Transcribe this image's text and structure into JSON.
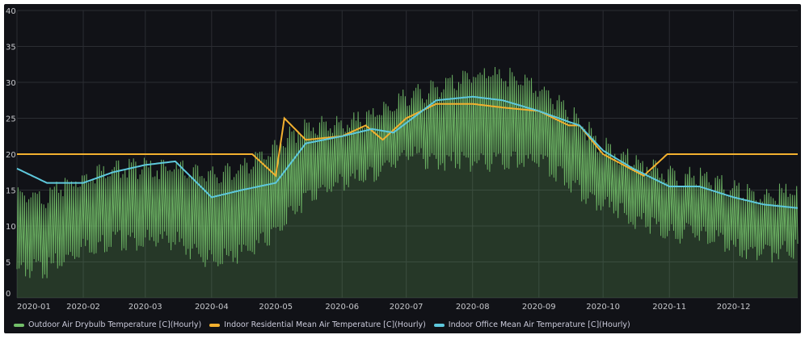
{
  "chart_data": {
    "type": "line",
    "title": "",
    "ylim": [
      0,
      40
    ],
    "y_ticks": [
      "0",
      "5",
      "10",
      "15",
      "20",
      "25",
      "30",
      "35",
      "40"
    ],
    "x_ticks": [
      "2020-01",
      "2020-02",
      "2020-03",
      "2020-04",
      "2020-05",
      "2020-06",
      "2020-07",
      "2020-08",
      "2020-09",
      "2020-10",
      "2020-11",
      "2020-12"
    ],
    "x_range": [
      "2020-01-01",
      "2020-12-31"
    ],
    "grid": true,
    "legend_position": "bottom-left",
    "series": [
      {
        "name": "Outdoor Air Drybulb Temperature [C](Hourly)",
        "color": "#73bf69",
        "style": "filled area, daily oscillation",
        "daily_mean": {
          "dates": [
            "2020-01-01",
            "2020-01-15",
            "2020-02-01",
            "2020-02-15",
            "2020-03-01",
            "2020-03-15",
            "2020-04-01",
            "2020-04-15",
            "2020-05-01",
            "2020-05-15",
            "2020-06-01",
            "2020-06-15",
            "2020-07-01",
            "2020-07-15",
            "2020-08-01",
            "2020-08-15",
            "2020-09-01",
            "2020-09-15",
            "2020-10-01",
            "2020-10-15",
            "2020-11-01",
            "2020-11-15",
            "2020-12-01",
            "2020-12-15",
            "2020-12-31"
          ],
          "values": [
            9,
            9,
            12,
            13,
            13,
            13,
            11,
            12,
            15,
            19,
            20,
            21,
            24,
            24,
            25,
            25,
            24,
            21,
            17,
            15,
            13,
            13,
            11,
            10,
            11
          ]
        },
        "daily_amplitude": {
          "dates": [
            "2020-01-01",
            "2020-01-15",
            "2020-02-01",
            "2020-02-15",
            "2020-03-01",
            "2020-03-15",
            "2020-04-01",
            "2020-04-15",
            "2020-05-01",
            "2020-05-15",
            "2020-06-01",
            "2020-06-15",
            "2020-07-01",
            "2020-07-15",
            "2020-08-01",
            "2020-08-15",
            "2020-09-01",
            "2020-09-15",
            "2020-10-01",
            "2020-10-15",
            "2020-11-01",
            "2020-11-15",
            "2020-12-01",
            "2020-12-15",
            "2020-12-31"
          ],
          "values": [
            5,
            5,
            5,
            5,
            5,
            5,
            6,
            6,
            6,
            5,
            4,
            4,
            4,
            5,
            6,
            6,
            5,
            5,
            4,
            4,
            4,
            4,
            4,
            4,
            4
          ]
        }
      },
      {
        "name": "Indoor Residential Mean Air Temperature [C](Hourly)",
        "color": "#f2b02f",
        "style": "line",
        "points": {
          "dates": [
            "2020-01-01",
            "2020-04-20",
            "2020-05-01",
            "2020-05-05",
            "2020-05-15",
            "2020-06-01",
            "2020-06-12",
            "2020-06-20",
            "2020-07-01",
            "2020-07-15",
            "2020-08-01",
            "2020-08-15",
            "2020-09-01",
            "2020-09-15",
            "2020-09-20",
            "2020-10-01",
            "2020-10-20",
            "2020-10-31",
            "2020-12-31"
          ],
          "values": [
            20,
            20,
            17,
            25,
            22,
            22.5,
            24,
            22,
            25,
            27,
            27,
            26.5,
            26,
            24,
            24,
            20,
            17,
            20,
            20
          ]
        }
      },
      {
        "name": "Indoor Office Mean Air Temperature [C](Hourly)",
        "color": "#5ec8dc",
        "style": "line",
        "points": {
          "dates": [
            "2020-01-01",
            "2020-01-15",
            "2020-02-01",
            "2020-02-15",
            "2020-03-01",
            "2020-03-15",
            "2020-04-01",
            "2020-04-15",
            "2020-05-01",
            "2020-05-15",
            "2020-06-01",
            "2020-06-15",
            "2020-06-25",
            "2020-07-15",
            "2020-08-01",
            "2020-08-15",
            "2020-09-01",
            "2020-09-15",
            "2020-09-20",
            "2020-10-01",
            "2020-10-15",
            "2020-11-01",
            "2020-11-15",
            "2020-12-01",
            "2020-12-15",
            "2020-12-31"
          ],
          "values": [
            18,
            16,
            16,
            17.5,
            18.5,
            19,
            14,
            15,
            16,
            21.5,
            22.5,
            23.5,
            23,
            27.5,
            28,
            27.5,
            26,
            24.5,
            24,
            20.5,
            18,
            15.5,
            15.5,
            14,
            13,
            12.5
          ]
        }
      }
    ]
  }
}
